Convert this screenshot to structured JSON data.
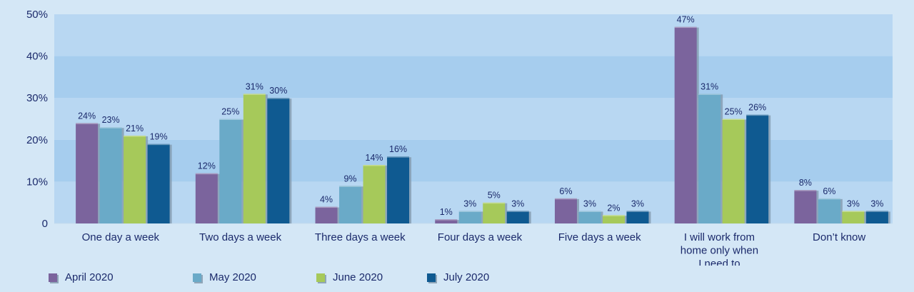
{
  "chart_data": {
    "type": "bar",
    "categories": [
      "One day a week",
      "Two days a week",
      "Three days a week",
      "Four days a week",
      "Five days a week",
      "I will work from home only when I need to",
      "Don’t know"
    ],
    "category_lines": [
      [
        "One day a week"
      ],
      [
        "Two days a week"
      ],
      [
        "Three days a week"
      ],
      [
        "Four days a week"
      ],
      [
        "Five days a week"
      ],
      [
        "I will work from",
        "home only when",
        "I need to"
      ],
      [
        "Don’t know"
      ]
    ],
    "series": [
      {
        "name": "April 2020",
        "color": "#7b649d",
        "values": [
          24,
          12,
          4,
          1,
          6,
          47,
          8
        ],
        "labels": [
          "24%",
          "12%",
          "4%",
          "1%",
          "6%",
          "47%",
          "8%"
        ]
      },
      {
        "name": "May 2020",
        "color": "#6aaac8",
        "values": [
          23,
          25,
          9,
          3,
          3,
          31,
          6
        ],
        "labels": [
          "23%",
          "25%",
          "9%",
          "3%",
          "3%",
          "31%",
          "6%"
        ]
      },
      {
        "name": "June 2020",
        "color": "#a6c95a",
        "values": [
          21,
          31,
          14,
          5,
          2,
          25,
          3
        ],
        "labels": [
          "21%",
          "31%",
          "14%",
          "5%",
          "2%",
          "25%",
          "3%"
        ]
      },
      {
        "name": "July 2020",
        "color": "#0f5a91",
        "values": [
          19,
          30,
          16,
          3,
          3,
          26,
          3
        ],
        "labels": [
          "19%",
          "30%",
          "16%",
          "3%",
          "3%",
          "26%",
          "3%"
        ]
      }
    ],
    "ylim": [
      0,
      50
    ],
    "yticks": [
      0,
      10,
      20,
      30,
      40,
      50
    ],
    "ytick_labels": [
      "0",
      "10%",
      "20%",
      "30%",
      "40%",
      "50%"
    ],
    "legend_position": "bottom-left",
    "colors": {
      "background": "#d4e7f6",
      "plot_band_dark": "#a6cdee",
      "plot_band_light": "#b8d7f2",
      "text": "#1b2a6b"
    }
  }
}
